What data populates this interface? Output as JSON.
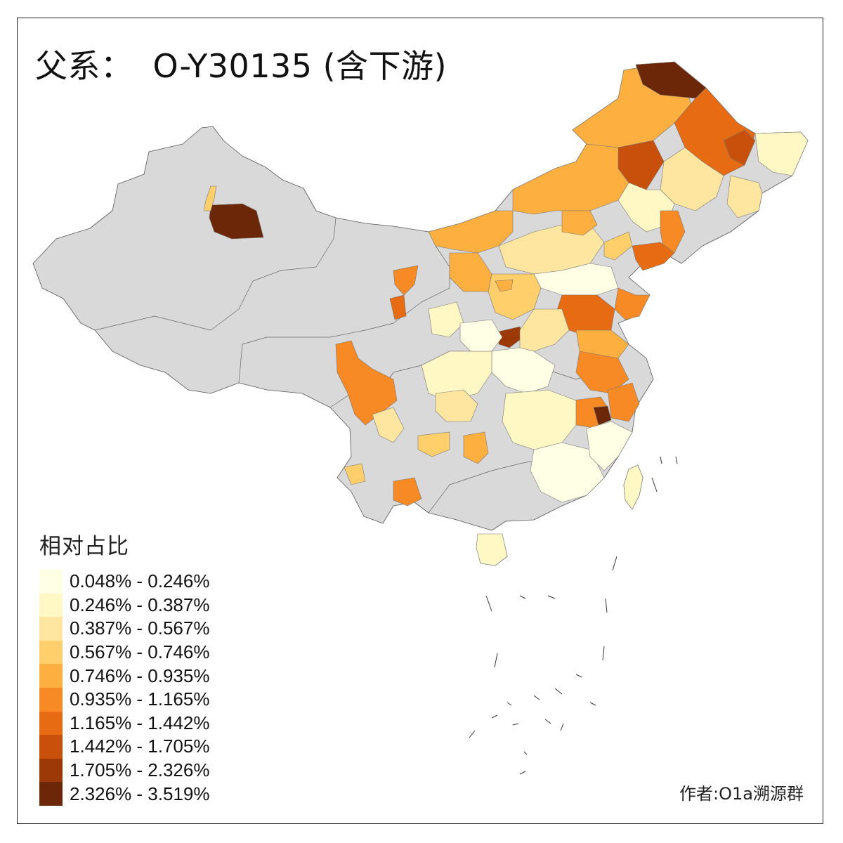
{
  "title": {
    "prefix": "父系：",
    "haplogroup": "O-Y30135 (含下游)"
  },
  "legend": {
    "title": "相对占比",
    "classes": [
      {
        "label": "0.048% - 0.246%",
        "color": "#FFFFE5"
      },
      {
        "label": "0.246% - 0.387%",
        "color": "#FFF7C4"
      },
      {
        "label": "0.387% - 0.567%",
        "color": "#FEE6A0"
      },
      {
        "label": "0.567% - 0.746%",
        "color": "#FECF6A"
      },
      {
        "label": "0.746% - 0.935%",
        "color": "#FDAF3F"
      },
      {
        "label": "0.935% - 1.165%",
        "color": "#F78A24"
      },
      {
        "label": "1.165% - 1.442%",
        "color": "#E66B12"
      },
      {
        "label": "1.442% - 1.705%",
        "color": "#C8500A"
      },
      {
        "label": "1.705% - 2.326%",
        "color": "#9D3906"
      },
      {
        "label": "2.326% - 3.519%",
        "color": "#6B2708"
      }
    ]
  },
  "no_data_color": "#D9D9D9",
  "credit": "作者:O1a溯源群"
}
